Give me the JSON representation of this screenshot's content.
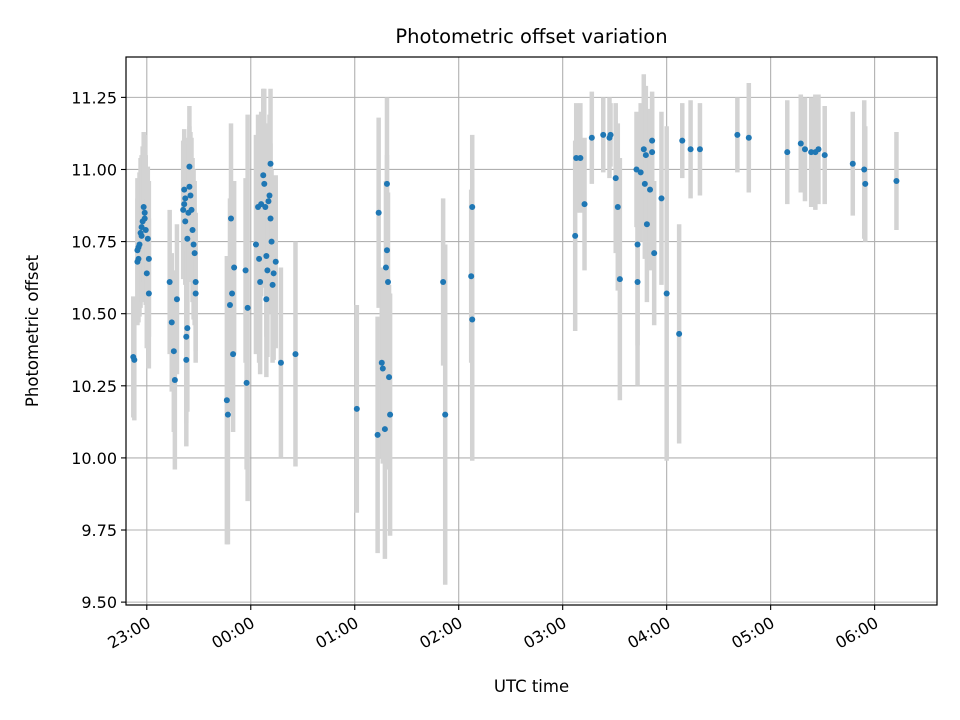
{
  "chart_data": {
    "type": "scatter",
    "title": "Photometric offset variation",
    "xlabel": "UTC time",
    "ylabel": "Photometric offset",
    "x_unit": "hours relative to 00:00 UTC",
    "xlim": [
      -1.2,
      6.6
    ],
    "ylim": [
      9.49,
      11.39
    ],
    "grid": true,
    "x_ticks": [
      -1,
      0,
      1,
      2,
      3,
      4,
      5,
      6
    ],
    "x_tick_labels": [
      "23:00",
      "00:00",
      "01:00",
      "02:00",
      "03:00",
      "04:00",
      "05:00",
      "06:00"
    ],
    "y_ticks": [
      9.5,
      9.75,
      10.0,
      10.25,
      10.5,
      10.75,
      11.0,
      11.25
    ],
    "y_tick_labels": [
      "9.50",
      "9.75",
      "10.00",
      "10.25",
      "10.50",
      "10.75",
      "11.00",
      "11.25"
    ],
    "colors": {
      "points": "#1f77b4",
      "error_bars": "#d3d3d3",
      "grid": "#b0b0b0"
    },
    "series": [
      {
        "values": [
          [
            -1.13,
            10.35,
            0.21
          ],
          [
            -1.12,
            10.34,
            0.21
          ],
          [
            -1.09,
            10.72,
            0.25
          ],
          [
            -1.09,
            10.68,
            0.22
          ],
          [
            -1.08,
            10.73,
            0.21
          ],
          [
            -1.08,
            10.69,
            0.22
          ],
          [
            -1.07,
            10.74,
            0.25
          ],
          [
            -1.06,
            10.78,
            0.26
          ],
          [
            -1.05,
            10.8,
            0.25
          ],
          [
            -1.05,
            10.77,
            0.23
          ],
          [
            -1.04,
            10.82,
            0.26
          ],
          [
            -1.03,
            10.87,
            0.26
          ],
          [
            -1.02,
            10.85,
            0.27
          ],
          [
            -1.01,
            10.79,
            0.26
          ],
          [
            -1.02,
            10.83,
            0.25
          ],
          [
            -1.0,
            10.64,
            0.26
          ],
          [
            -0.99,
            10.76,
            0.25
          ],
          [
            -0.98,
            10.69,
            0.27
          ],
          [
            -0.98,
            10.57,
            0.26
          ],
          [
            -0.78,
            10.61,
            0.25
          ],
          [
            -0.76,
            10.47,
            0.24
          ],
          [
            -0.74,
            10.37,
            0.28
          ],
          [
            -0.73,
            10.27,
            0.31
          ],
          [
            -0.71,
            10.55,
            0.26
          ],
          [
            -0.65,
            10.86,
            0.24
          ],
          [
            -0.64,
            10.88,
            0.23
          ],
          [
            -0.64,
            10.93,
            0.21
          ],
          [
            -0.63,
            10.9,
            0.21
          ],
          [
            -0.63,
            10.82,
            0.22
          ],
          [
            -0.62,
            10.42,
            0.3
          ],
          [
            -0.62,
            10.34,
            0.3
          ],
          [
            -0.61,
            10.45,
            0.29
          ],
          [
            -0.61,
            10.76,
            0.26
          ],
          [
            -0.6,
            10.85,
            0.24
          ],
          [
            -0.59,
            11.01,
            0.21
          ],
          [
            -0.59,
            10.94,
            0.21
          ],
          [
            -0.58,
            10.91,
            0.22
          ],
          [
            -0.57,
            10.86,
            0.25
          ],
          [
            -0.56,
            10.79,
            0.25
          ],
          [
            -0.55,
            10.74,
            0.26
          ],
          [
            -0.54,
            10.71,
            0.25
          ],
          [
            -0.53,
            10.61,
            0.24
          ],
          [
            -0.53,
            10.57,
            0.24
          ],
          [
            -0.23,
            10.2,
            0.5
          ],
          [
            -0.22,
            10.15,
            0.45
          ],
          [
            -0.2,
            10.53,
            0.37
          ],
          [
            -0.19,
            10.83,
            0.33
          ],
          [
            -0.18,
            10.57,
            0.3
          ],
          [
            -0.17,
            10.36,
            0.27
          ],
          [
            -0.16,
            10.66,
            0.3
          ],
          [
            -0.05,
            10.65,
            0.32
          ],
          [
            -0.04,
            10.26,
            0.3
          ],
          [
            -0.03,
            10.52,
            0.67
          ],
          [
            0.05,
            10.74,
            0.38
          ],
          [
            0.07,
            10.87,
            0.32
          ],
          [
            0.08,
            10.69,
            0.36
          ],
          [
            0.09,
            10.61,
            0.32
          ],
          [
            0.1,
            10.88,
            0.32
          ],
          [
            0.12,
            10.98,
            0.3
          ],
          [
            0.13,
            10.95,
            0.33
          ],
          [
            0.14,
            10.87,
            0.28
          ],
          [
            0.15,
            10.7,
            0.28
          ],
          [
            0.15,
            10.55,
            0.27
          ],
          [
            0.16,
            10.65,
            0.3
          ],
          [
            0.17,
            10.89,
            0.27
          ],
          [
            0.18,
            10.91,
            0.28
          ],
          [
            0.19,
            11.02,
            0.26
          ],
          [
            0.19,
            10.83,
            0.26
          ],
          [
            0.2,
            10.75,
            0.25
          ],
          [
            0.21,
            10.6,
            0.27
          ],
          [
            0.22,
            10.64,
            0.3
          ],
          [
            0.24,
            10.68,
            0.3
          ],
          [
            0.29,
            10.33,
            0.33
          ],
          [
            0.43,
            10.36,
            0.39
          ],
          [
            1.02,
            10.17,
            0.36
          ],
          [
            1.22,
            10.08,
            0.41
          ],
          [
            1.23,
            10.85,
            0.33
          ],
          [
            1.26,
            10.33,
            0.33
          ],
          [
            1.27,
            10.31,
            0.33
          ],
          [
            1.29,
            10.1,
            0.45
          ],
          [
            1.3,
            10.66,
            0.3
          ],
          [
            1.31,
            10.95,
            0.3
          ],
          [
            1.31,
            10.72,
            0.33
          ],
          [
            1.32,
            10.61,
            0.31
          ],
          [
            1.33,
            10.28,
            0.32
          ],
          [
            1.34,
            10.15,
            0.42
          ],
          [
            1.85,
            10.61,
            0.29
          ],
          [
            1.87,
            10.15,
            0.59
          ],
          [
            2.13,
            10.87,
            0.25
          ],
          [
            2.12,
            10.63,
            0.3
          ],
          [
            2.13,
            10.48,
            0.49
          ],
          [
            3.12,
            10.77,
            0.33
          ],
          [
            3.13,
            11.04,
            0.19
          ],
          [
            3.17,
            11.04,
            0.19
          ],
          [
            3.21,
            10.88,
            0.23
          ],
          [
            3.28,
            11.11,
            0.16
          ],
          [
            3.39,
            11.12,
            0.13
          ],
          [
            3.45,
            11.11,
            0.14
          ],
          [
            3.46,
            11.12,
            0.11
          ],
          [
            3.51,
            10.97,
            0.26
          ],
          [
            3.53,
            10.87,
            0.29
          ],
          [
            3.55,
            10.62,
            0.42
          ],
          [
            3.71,
            11.0,
            0.2
          ],
          [
            3.72,
            10.74,
            0.35
          ],
          [
            3.72,
            10.61,
            0.36
          ],
          [
            3.75,
            10.99,
            0.24
          ],
          [
            3.78,
            11.07,
            0.26
          ],
          [
            3.79,
            10.95,
            0.26
          ],
          [
            3.8,
            11.05,
            0.24
          ],
          [
            3.81,
            10.81,
            0.27
          ],
          [
            3.84,
            10.93,
            0.28
          ],
          [
            3.86,
            11.1,
            0.17
          ],
          [
            3.86,
            11.06,
            0.19
          ],
          [
            3.88,
            10.71,
            0.25
          ],
          [
            3.95,
            10.9,
            0.3
          ],
          [
            4.0,
            10.57,
            0.58
          ],
          [
            4.12,
            10.43,
            0.38
          ],
          [
            4.15,
            11.1,
            0.13
          ],
          [
            4.23,
            11.07,
            0.17
          ],
          [
            4.32,
            11.07,
            0.16
          ],
          [
            4.68,
            11.12,
            0.13
          ],
          [
            4.79,
            11.11,
            0.19
          ],
          [
            5.16,
            11.06,
            0.18
          ],
          [
            5.29,
            11.09,
            0.17
          ],
          [
            5.33,
            11.07,
            0.18
          ],
          [
            5.39,
            11.06,
            0.19
          ],
          [
            5.43,
            11.06,
            0.2
          ],
          [
            5.46,
            11.07,
            0.19
          ],
          [
            5.52,
            11.05,
            0.17
          ],
          [
            5.79,
            11.02,
            0.18
          ],
          [
            5.9,
            11.0,
            0.24
          ],
          [
            5.91,
            10.95,
            0.2
          ],
          [
            6.21,
            10.96,
            0.17
          ]
        ]
      }
    ]
  }
}
